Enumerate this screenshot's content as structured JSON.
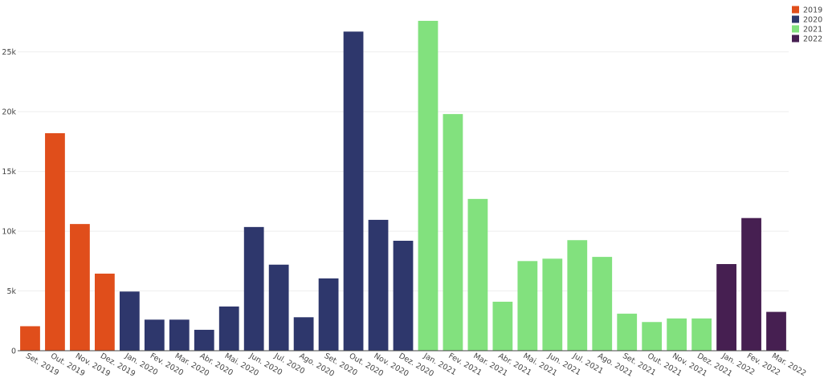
{
  "chart_data": {
    "type": "bar",
    "title": "",
    "xlabel": "",
    "ylabel": "",
    "ylim": [
      0,
      28000
    ],
    "yticks": [
      {
        "value": 0,
        "label": "0"
      },
      {
        "value": 5000,
        "label": "5k"
      },
      {
        "value": 10000,
        "label": "10k"
      },
      {
        "value": 15000,
        "label": "15k"
      },
      {
        "value": 20000,
        "label": "20k"
      },
      {
        "value": 25000,
        "label": "25k"
      }
    ],
    "grid": true,
    "legend_position": "top-right",
    "series": [
      {
        "name": "2019",
        "color": "#e04e1b",
        "categories": [
          "Set. 2019",
          "Out. 2019",
          "Nov. 2019",
          "Dez. 2019"
        ],
        "values": [
          2050,
          18200,
          10600,
          6450
        ]
      },
      {
        "name": "2020",
        "color": "#2e376c",
        "categories": [
          "Jan. 2020",
          "Fev. 2020",
          "Mar. 2020",
          "Abr. 2020",
          "Mai. 2020",
          "Jun. 2020",
          "Jul. 2020",
          "Ago. 2020",
          "Set. 2020",
          "Out. 2020",
          "Nov. 2020",
          "Dez. 2020"
        ],
        "values": [
          4950,
          2600,
          2600,
          1750,
          3700,
          10350,
          7200,
          2800,
          6050,
          26700,
          10950,
          9200
        ]
      },
      {
        "name": "2021",
        "color": "#82e17e",
        "categories": [
          "Jan. 2021",
          "Fev. 2021",
          "Mar. 2021",
          "Abr. 2021",
          "Mai. 2021",
          "Jun. 2021",
          "Jul. 2021",
          "Ago. 2021",
          "Set. 2021",
          "Out. 2021",
          "Nov. 2021",
          "Dez. 2021"
        ],
        "values": [
          27600,
          19800,
          12700,
          4100,
          7500,
          7700,
          9250,
          7850,
          3100,
          2400,
          2700,
          2700
        ]
      },
      {
        "name": "2022",
        "color": "#461f51",
        "categories": [
          "Jan. 2022",
          "Fev. 2022",
          "Mar. 2022"
        ],
        "values": [
          7250,
          11100,
          3250
        ]
      }
    ]
  }
}
